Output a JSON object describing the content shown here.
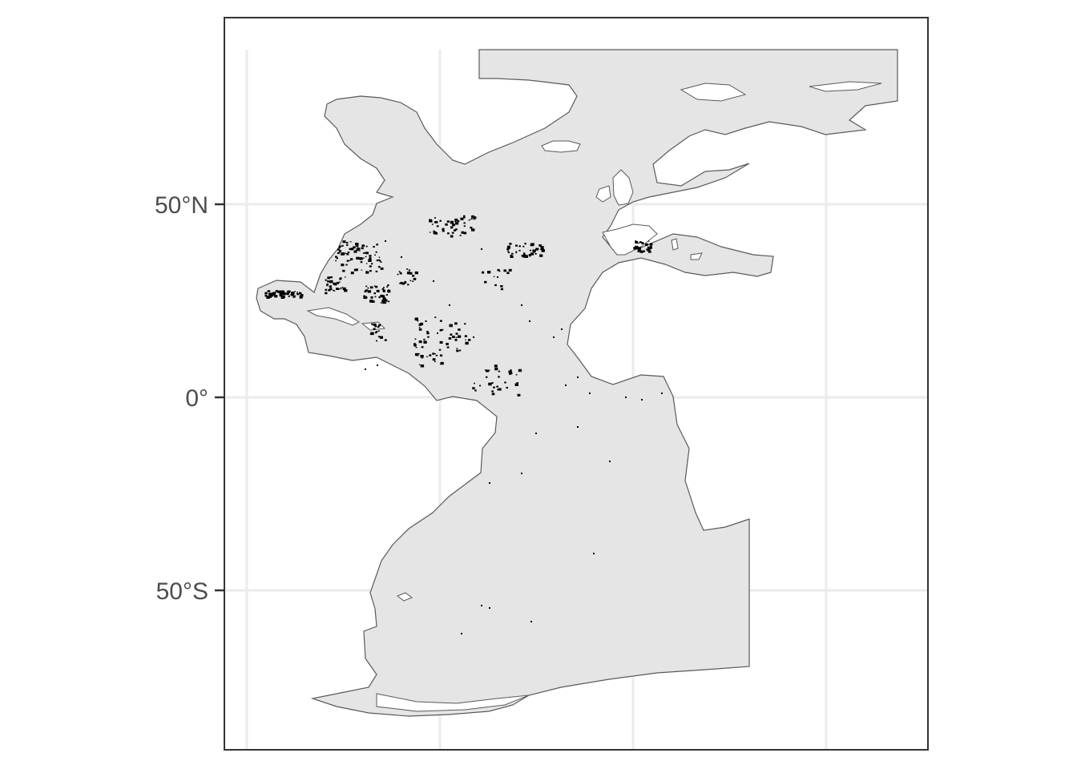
{
  "map": {
    "y_axis": {
      "ticks": [
        {
          "label": "50°N",
          "lat": 50
        },
        {
          "label": "0°",
          "lat": 0
        },
        {
          "label": "50°S",
          "lat": -50
        }
      ]
    },
    "colors": {
      "ocean_fill": "#e5e5e5",
      "coast_stroke": "#5a5a5a",
      "land": "#ffffff",
      "grid": "#ebebeb",
      "panel_border": "#333333",
      "points": "#000000"
    },
    "grid": true
  }
}
